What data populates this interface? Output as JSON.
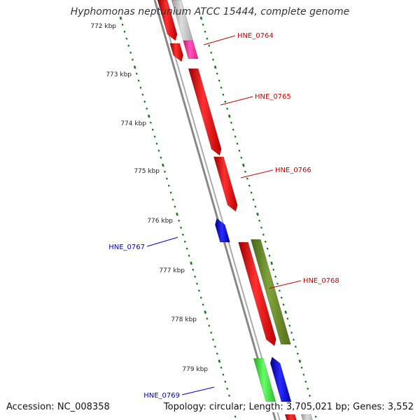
{
  "title": "Hyphomonas neptunium ATCC 15444, complete genome",
  "footer": {
    "accession": "Accession: NC_008358",
    "summary": "Topology: circular; Length: 3,705,021 bp; Genes: 3,552"
  },
  "ticks": [
    "772 kbp",
    "773 kbp",
    "774 kbp",
    "775 kbp",
    "776 kbp",
    "777 kbp",
    "778 kbp",
    "779 kbp"
  ],
  "gene_labels": [
    {
      "name": "HNE_0764",
      "color": "#cc0000"
    },
    {
      "name": "HNE_0765",
      "color": "#cc0000"
    },
    {
      "name": "HNE_0766",
      "color": "#cc0000"
    },
    {
      "name": "HNE_0767",
      "color": "#0000cc"
    },
    {
      "name": "HNE_0768",
      "color": "#cc0000"
    },
    {
      "name": "HNE_0769",
      "color": "#0000cc"
    }
  ],
  "colors": {
    "forward": "#ff0000",
    "reverse": "#0000ff",
    "olive": "#6b8e23",
    "magenta": "#ff3399",
    "light_green": "#33dd33",
    "grey": "#bbbbbb",
    "dots": "#1a7a1a",
    "backbone": "#888888"
  }
}
